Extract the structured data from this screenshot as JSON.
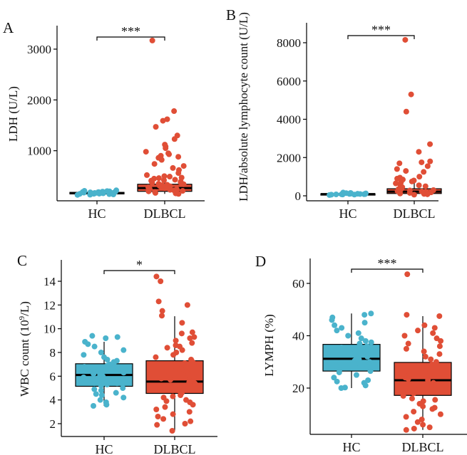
{
  "colors": {
    "HC": "#4ab3cc",
    "DLBCL": "#e04e36",
    "axis": "#000000"
  },
  "chart_data": [
    {
      "type": "box",
      "panel_label": "A",
      "ylabel": "LDH (U/L)",
      "categories": [
        "HC",
        "DLBCL"
      ],
      "yticks": [
        1000,
        2000,
        3000
      ],
      "ylim": [
        0,
        3450
      ],
      "significance": "***",
      "groups": [
        {
          "name": "HC",
          "q1": 150,
          "median": 165,
          "q3": 180,
          "whisker_low": 120,
          "whisker_high": 230,
          "points": [
            130,
            140,
            150,
            155,
            160,
            165,
            170,
            175,
            180,
            185,
            190,
            200,
            210,
            220,
            145,
            168,
            172,
            158,
            195,
            135,
            205,
            178,
            162,
            152,
            188
          ]
        },
        {
          "name": "DLBCL",
          "q1": 200,
          "median": 265,
          "q3": 340,
          "whisker_low": 150,
          "whisker_high": 550,
          "points": [
            3170,
            1780,
            1620,
            1590,
            1470,
            1300,
            1230,
            1120,
            1080,
            1050,
            980,
            950,
            930,
            900,
            880,
            860,
            820,
            740,
            700,
            660,
            620,
            560,
            520,
            490,
            470,
            450,
            430,
            410,
            390,
            370,
            350,
            330,
            310,
            290,
            270,
            250,
            230,
            210,
            190,
            170,
            160,
            150,
            300,
            280,
            260,
            240,
            220,
            200,
            320,
            340,
            380,
            420,
            460,
            500
          ]
        }
      ]
    },
    {
      "type": "box",
      "panel_label": "B",
      "ylabel": "LDH/absolute lymphocyte count (U/L)",
      "categories": [
        "HC",
        "DLBCL"
      ],
      "yticks": [
        0,
        2000,
        4000,
        6000,
        8000
      ],
      "ylim": [
        -250,
        8950
      ],
      "significance": "***",
      "groups": [
        {
          "name": "HC",
          "q1": 70,
          "median": 90,
          "q3": 110,
          "whisker_low": 40,
          "whisker_high": 170,
          "points": [
            40,
            60,
            70,
            80,
            90,
            100,
            110,
            120,
            130,
            150,
            170,
            85,
            95,
            75,
            105,
            65,
            125,
            140
          ]
        },
        {
          "name": "DLBCL",
          "q1": 120,
          "median": 220,
          "q3": 370,
          "whisker_low": 50,
          "whisker_high": 750,
          "points": [
            8150,
            5300,
            4400,
            2700,
            2300,
            1800,
            1750,
            1700,
            1550,
            1400,
            1300,
            1250,
            1000,
            950,
            900,
            850,
            800,
            750,
            700,
            650,
            600,
            550,
            500,
            450,
            400,
            350,
            300,
            250,
            200,
            150,
            100,
            80,
            60,
            320,
            280,
            230,
            180,
            120
          ]
        }
      ]
    },
    {
      "type": "box",
      "panel_label": "C",
      "ylabel_main": "WBC count (10",
      "ylabel_sup": "9",
      "ylabel_tail": "/L)",
      "categories": [
        "HC",
        "DLBCL"
      ],
      "yticks": [
        2,
        4,
        6,
        8,
        10,
        12,
        14
      ],
      "ylim": [
        0.9,
        15.8
      ],
      "significance": "*",
      "groups": [
        {
          "name": "HC",
          "q1": 5.15,
          "median": 6.1,
          "q3": 7.05,
          "whisker_low": 3.5,
          "whisker_high": 8.9,
          "points": [
            9.4,
            9.3,
            9.2,
            8.9,
            8.7,
            8.5,
            8.2,
            8,
            7.8,
            7.6,
            7.4,
            7.2,
            7,
            6.8,
            6.6,
            6.4,
            6.2,
            6,
            5.8,
            5.6,
            5.4,
            5.2,
            5,
            4.8,
            4.6,
            4.4,
            4.2,
            4,
            3.8,
            3.6,
            3.5,
            6.1,
            6.3,
            5.9,
            6.5,
            5.7,
            7.1,
            4.9,
            5.3,
            6.7,
            7.3,
            5.5,
            6.9,
            4.5
          ]
        },
        {
          "name": "DLBCL",
          "q1": 4.55,
          "median": 5.55,
          "q3": 7.3,
          "whisker_low": 1.4,
          "whisker_high": 11.05,
          "points": [
            14.4,
            14,
            12.3,
            12,
            11.5,
            11.1,
            10.5,
            9.7,
            9.6,
            9.3,
            9.2,
            9,
            8.8,
            8.6,
            8.4,
            8.2,
            8,
            7.8,
            7.6,
            7.4,
            7.2,
            7,
            6.8,
            6.6,
            6.4,
            6.2,
            6,
            5.8,
            5.6,
            5.4,
            5.2,
            5,
            4.8,
            4.6,
            4.4,
            4.2,
            4,
            3.8,
            3.6,
            3.4,
            3.2,
            3,
            2.8,
            2.6,
            2.4,
            2.2,
            2,
            1.9,
            1.4,
            5.5,
            6.1,
            4.9,
            7.1,
            6.5,
            5.7,
            4.3,
            3.9,
            8.5
          ]
        }
      ]
    },
    {
      "type": "box",
      "panel_label": "D",
      "ylabel": "LYMPH (%)",
      "categories": [
        "HC",
        "DLBCL"
      ],
      "yticks": [
        20,
        40,
        60
      ],
      "ylim": [
        2.5,
        69.5
      ],
      "significance": "***",
      "groups": [
        {
          "name": "HC",
          "q1": 26.5,
          "median": 31.2,
          "q3": 36.7,
          "whisker_low": 20,
          "whisker_high": 48.5,
          "points": [
            48.5,
            48,
            47,
            46,
            45,
            44,
            43,
            42,
            41,
            40,
            39,
            38,
            37,
            36,
            35,
            34,
            33,
            32,
            31,
            30,
            29,
            28,
            27,
            26,
            25,
            24,
            23,
            22,
            21,
            20,
            20.2,
            31.5,
            30.5,
            33.5,
            28.5,
            35.5,
            26.5,
            37.5,
            22.5
          ]
        },
        {
          "name": "DLBCL",
          "q1": 17.2,
          "median": 23.0,
          "q3": 29.8,
          "whisker_low": 4,
          "whisker_high": 47.5,
          "points": [
            63.5,
            48,
            47.5,
            44,
            43,
            42,
            41,
            40,
            39,
            38,
            37,
            36,
            35,
            34,
            33,
            32,
            31,
            30,
            29,
            28,
            27,
            26,
            25,
            24,
            23,
            22,
            21,
            20,
            19,
            18,
            17,
            16,
            15,
            14,
            13,
            12,
            11,
            10,
            9,
            8,
            7,
            6,
            5,
            4,
            4.5,
            23.5,
            25.5,
            21.5,
            27.5,
            19.5,
            15.5,
            12.5
          ]
        }
      ]
    }
  ]
}
